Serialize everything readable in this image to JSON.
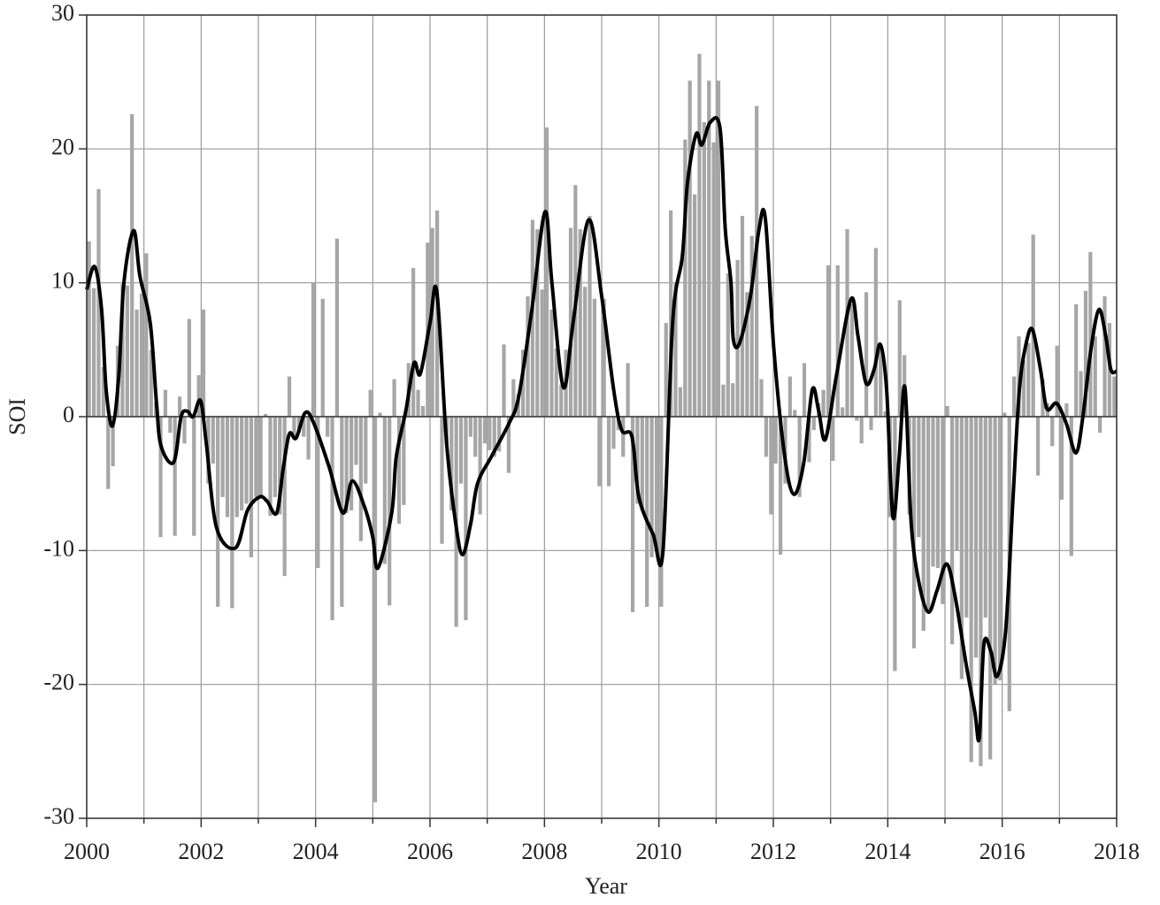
{
  "chart_data": {
    "type": "bar",
    "xlabel": "Year",
    "ylabel": "SOI",
    "xlim": [
      2000,
      2018
    ],
    "ylim": [
      -30,
      30
    ],
    "xticks": [
      2000,
      2002,
      2004,
      2006,
      2008,
      2010,
      2012,
      2014,
      2016,
      2018
    ],
    "xminorticks": [
      2001,
      2003,
      2005,
      2007,
      2009,
      2011,
      2013,
      2015,
      2017
    ],
    "yticks": [
      -30,
      -20,
      -10,
      0,
      10,
      20,
      30
    ],
    "grid": true,
    "series": [
      {
        "type": "bar",
        "color": "#a6a6a6",
        "x": [
          2000,
          2000.083,
          2000.167,
          2000.25,
          2000.333,
          2000.417,
          2000.5,
          2000.583,
          2000.667,
          2000.75,
          2000.833,
          2000.917,
          2001,
          2001.083,
          2001.167,
          2001.25,
          2001.333,
          2001.417,
          2001.5,
          2001.583,
          2001.667,
          2001.75,
          2001.833,
          2001.917,
          2002,
          2002.083,
          2002.167,
          2002.25,
          2002.333,
          2002.417,
          2002.5,
          2002.583,
          2002.667,
          2002.75,
          2002.833,
          2002.917,
          2003,
          2003.083,
          2003.167,
          2003.25,
          2003.333,
          2003.417,
          2003.5,
          2003.583,
          2003.667,
          2003.75,
          2003.833,
          2003.917,
          2004,
          2004.083,
          2004.167,
          2004.25,
          2004.333,
          2004.417,
          2004.5,
          2004.583,
          2004.667,
          2004.75,
          2004.833,
          2004.917,
          2005,
          2005.083,
          2005.167,
          2005.25,
          2005.333,
          2005.417,
          2005.5,
          2005.583,
          2005.667,
          2005.75,
          2005.833,
          2005.917,
          2006,
          2006.083,
          2006.167,
          2006.25,
          2006.333,
          2006.417,
          2006.5,
          2006.583,
          2006.667,
          2006.75,
          2006.833,
          2006.917,
          2007,
          2007.083,
          2007.167,
          2007.25,
          2007.333,
          2007.417,
          2007.5,
          2007.583,
          2007.667,
          2007.75,
          2007.833,
          2007.917,
          2008,
          2008.083,
          2008.167,
          2008.25,
          2008.333,
          2008.417,
          2008.5,
          2008.583,
          2008.667,
          2008.75,
          2008.833,
          2008.917,
          2009,
          2009.083,
          2009.167,
          2009.25,
          2009.333,
          2009.417,
          2009.5,
          2009.583,
          2009.667,
          2009.75,
          2009.833,
          2009.917,
          2010,
          2010.083,
          2010.167,
          2010.25,
          2010.333,
          2010.417,
          2010.5,
          2010.583,
          2010.667,
          2010.75,
          2010.833,
          2010.917,
          2011,
          2011.083,
          2011.167,
          2011.25,
          2011.333,
          2011.417,
          2011.5,
          2011.583,
          2011.667,
          2011.75,
          2011.833,
          2011.917,
          2012,
          2012.083,
          2012.167,
          2012.25,
          2012.333,
          2012.417,
          2012.5,
          2012.583,
          2012.667,
          2012.75,
          2012.833,
          2012.917,
          2013,
          2013.083,
          2013.167,
          2013.25,
          2013.333,
          2013.417,
          2013.5,
          2013.583,
          2013.667,
          2013.75,
          2013.833,
          2013.917,
          2014,
          2014.083,
          2014.167,
          2014.25,
          2014.333,
          2014.417,
          2014.5,
          2014.583,
          2014.667,
          2014.75,
          2014.833,
          2014.917,
          2015,
          2015.083,
          2015.167,
          2015.25,
          2015.333,
          2015.417,
          2015.5,
          2015.583,
          2015.667,
          2015.75,
          2015.833,
          2015.917,
          2016,
          2016.083,
          2016.167,
          2016.25,
          2016.333,
          2016.417,
          2016.5,
          2016.583,
          2016.667,
          2016.75,
          2016.833,
          2016.917,
          2017,
          2017.083,
          2017.167,
          2017.25,
          2017.333,
          2017.417,
          2017.5,
          2017.583,
          2017.667,
          2017.75,
          2017.833,
          2017.917
        ],
        "values": [
          13.1,
          9.6,
          17.0,
          3.7,
          -5.4,
          -3.7,
          5.3,
          9.9,
          9.8,
          22.6,
          8.0,
          9.2,
          12.2,
          5.0,
          1.1,
          -9.0,
          2.0,
          -1.2,
          -8.9,
          1.5,
          -2.0,
          7.3,
          -8.9,
          3.1,
          8.0,
          -5.0,
          -3.5,
          -14.2,
          -6.0,
          -7.5,
          -14.3,
          -7.5,
          -7.0,
          -6.5,
          -10.5,
          -6.0,
          -6.0,
          0.2,
          -7.4,
          -6.0,
          -7.3,
          -11.9,
          3.0,
          -1.5,
          -1.2,
          -1.5,
          -3.2,
          10.0,
          -11.3,
          8.8,
          -1.5,
          -15.2,
          13.3,
          -14.2,
          -7.2,
          -7.0,
          -3.6,
          -9.3,
          -5.0,
          2.0,
          -28.8,
          0.3,
          -11.0,
          -14.1,
          2.8,
          -8.0,
          -6.6,
          4.0,
          11.1,
          2.0,
          0.8,
          13.0,
          14.1,
          15.4,
          -9.5,
          -2.0,
          -7.0,
          -15.7,
          -5.0,
          -15.2,
          -1.5,
          -3.0,
          -7.3,
          -2.0,
          -2.5,
          -3.0,
          -2.6,
          5.4,
          -4.2,
          2.8,
          1.7,
          5.0,
          9.0,
          14.7,
          14.0,
          9.5,
          21.6,
          8.0,
          5.1,
          2.4,
          5.0,
          14.1,
          17.3,
          14.0,
          9.7,
          15.0,
          8.8,
          -5.2,
          8.8,
          -5.2,
          -2.4,
          -1.0,
          -3.0,
          4.0,
          -14.6,
          -6.5,
          -7.0,
          -14.2,
          -10.5,
          -10.0,
          -14.2,
          7.0,
          15.4,
          10.0,
          2.2,
          20.7,
          25.1,
          16.6,
          27.1,
          22.0,
          25.1,
          20.5,
          25.1,
          2.4,
          10.7,
          2.5,
          11.7,
          15.0,
          9.3,
          13.5,
          23.2,
          2.8,
          -3.0,
          -7.3,
          -3.5,
          -10.3,
          -5.0,
          3.0,
          0.5,
          -6.0,
          4.0,
          -3.4,
          -1.0,
          1.0,
          2.0,
          11.3,
          -3.3,
          11.3,
          0.7,
          14.0,
          8.4,
          -0.3,
          -2.0,
          9.3,
          -1.0,
          12.6,
          5.0,
          0.4,
          -7.5,
          -19.0,
          8.7,
          4.6,
          -7.3,
          -17.3,
          -9.0,
          -16.0,
          -14.6,
          -11.2,
          -11.3,
          -14.0,
          0.8,
          -17.0,
          -10.0,
          -19.6,
          -15.0,
          -25.8,
          -18.0,
          -26.1,
          -15.0,
          -25.6,
          -20.0,
          -19.7,
          0.3,
          -22.0,
          3.0,
          6.0,
          4.2,
          5.5,
          13.6,
          -4.4,
          2.8,
          1.0,
          -2.2,
          5.3,
          -6.2,
          1.0,
          -10.4,
          8.4,
          3.4,
          9.4,
          12.3,
          6.0,
          -1.2,
          9.0,
          7.0,
          3.0
        ]
      },
      {
        "type": "line",
        "color": "#000000",
        "x": [
          2000.0,
          2000.14,
          2000.26,
          2000.34,
          2000.45,
          2000.56,
          2000.65,
          2000.82,
          2000.93,
          2001.11,
          2001.22,
          2001.3,
          2001.52,
          2001.65,
          2001.76,
          2001.86,
          2001.99,
          2002.09,
          2002.27,
          2002.6,
          2002.81,
          2003.02,
          2003.15,
          2003.32,
          2003.43,
          2003.54,
          2003.66,
          2003.82,
          2003.97,
          2004.24,
          2004.48,
          2004.64,
          2004.86,
          2005.0,
          2005.09,
          2005.33,
          2005.41,
          2005.58,
          2005.72,
          2005.83,
          2006.0,
          2006.12,
          2006.29,
          2006.45,
          2006.57,
          2006.71,
          2006.83,
          2007.07,
          2007.38,
          2007.55,
          2007.78,
          2008.01,
          2008.13,
          2008.33,
          2008.5,
          2008.77,
          2009.0,
          2009.21,
          2009.35,
          2009.53,
          2009.65,
          2009.9,
          2010.07,
          2010.24,
          2010.41,
          2010.5,
          2010.65,
          2010.75,
          2010.9,
          2011.07,
          2011.16,
          2011.26,
          2011.3,
          2011.41,
          2011.6,
          2011.75,
          2011.86,
          2012.01,
          2012.2,
          2012.36,
          2012.53,
          2012.68,
          2012.79,
          2012.91,
          2013.1,
          2013.36,
          2013.48,
          2013.62,
          2013.76,
          2013.87,
          2013.98,
          2014.09,
          2014.2,
          2014.3,
          2014.41,
          2014.55,
          2014.71,
          2014.86,
          2015.03,
          2015.18,
          2015.37,
          2015.52,
          2015.6,
          2015.68,
          2015.8,
          2015.91,
          2016.06,
          2016.19,
          2016.3,
          2016.42,
          2016.53,
          2016.67,
          2016.78,
          2016.95,
          2017.12,
          2017.29,
          2017.41,
          2017.55,
          2017.69,
          2017.81,
          2017.9,
          2018.0
        ],
        "values": [
          9.5,
          11.2,
          8,
          2,
          -0.7,
          3,
          10,
          13.9,
          10.5,
          7,
          1,
          -2.2,
          -3.4,
          0,
          0.4,
          0,
          1.2,
          -2,
          -8.3,
          -9.8,
          -7,
          -6,
          -6.3,
          -7.2,
          -4,
          -1.3,
          -1.6,
          0.3,
          -0.5,
          -3.8,
          -7.2,
          -4.8,
          -6.8,
          -9,
          -11.3,
          -7.2,
          -3,
          0.5,
          4,
          3.2,
          7,
          9.3,
          -2,
          -8,
          -10.3,
          -8,
          -5,
          -3,
          -0.5,
          1.5,
          8,
          15.3,
          10,
          2.2,
          7,
          14.7,
          9,
          2,
          -1,
          -1.5,
          -6,
          -8.8,
          -10.1,
          7,
          12,
          17.5,
          21.1,
          20.3,
          22,
          21.5,
          14,
          10,
          5.8,
          5.5,
          9,
          14,
          14.8,
          5,
          -3,
          -5.8,
          -3.5,
          2,
          0.5,
          -1.7,
          3,
          8.8,
          6,
          2.5,
          3.5,
          5.4,
          2,
          -7.5,
          -3,
          2.2,
          -8,
          -12.5,
          -14.6,
          -13,
          -11,
          -13.5,
          -18.5,
          -22,
          -24,
          -17,
          -17.5,
          -19.4,
          -16,
          -6,
          2,
          5.5,
          6.5,
          3.5,
          0.6,
          1,
          -0.5,
          -2.7,
          0,
          5,
          8,
          6,
          3.5,
          3.4
        ]
      }
    ]
  }
}
